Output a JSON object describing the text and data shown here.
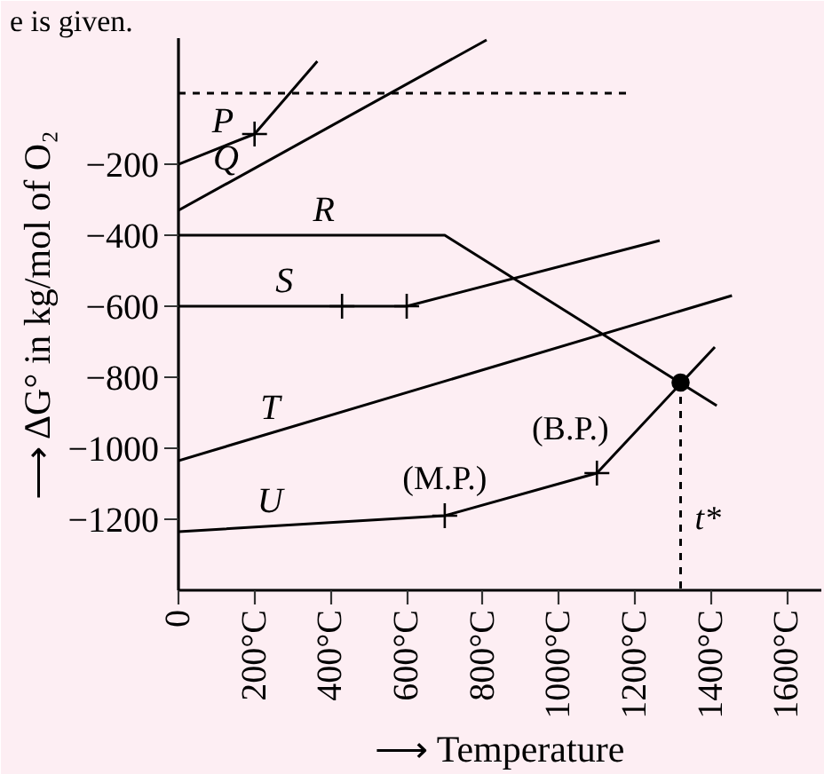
{
  "chart_data": {
    "type": "line",
    "xlabel": "⟶ Temperature",
    "ylabel": "⟶ ΔG° in kg/mol of O₂",
    "annotations": [
      "e is given.",
      {
        "text": "(M.P.)",
        "x": 700,
        "y": -1190
      },
      {
        "text": "(B.P.)",
        "x": 1100,
        "y": -1070
      },
      {
        "text": "t*",
        "x": 1320,
        "y": -1200
      }
    ],
    "xlim": [
      0,
      1690
    ],
    "ylim": [
      -1400,
      155
    ],
    "xticks": [
      0,
      {
        "value": 200,
        "label": "200°C"
      },
      {
        "value": 400,
        "label": "400°C"
      },
      {
        "value": 600,
        "label": "600°C"
      },
      {
        "value": 800,
        "label": "800°C"
      },
      {
        "value": 1000,
        "label": "1000°C"
      },
      {
        "value": 1200,
        "label": "1200°C"
      },
      {
        "value": 1400,
        "label": "1400°C"
      },
      {
        "value": 1600,
        "label": "1600°C"
      }
    ],
    "yticks": [
      -1200,
      -1000,
      -800,
      -600,
      -400,
      -200
    ],
    "grid": false,
    "legend": false,
    "series": [
      {
        "name": "P",
        "color": "#000000",
        "x": [
          0,
          200,
          365
        ],
        "values": [
          -200,
          -115,
          90
        ]
      },
      {
        "name": "Q",
        "color": "#000000",
        "x": [
          0,
          810
        ],
        "values": [
          -330,
          150
        ]
      },
      {
        "name": "R",
        "color": "#000000",
        "x": [
          0,
          700,
          1415
        ],
        "values": [
          -400,
          -400,
          -880
        ]
      },
      {
        "name": "S",
        "color": "#000000",
        "x": [
          0,
          600,
          1265
        ],
        "values": [
          -600,
          -600,
          -415
        ]
      },
      {
        "name": "T",
        "color": "#000000",
        "x": [
          0,
          1455
        ],
        "values": [
          -1035,
          -570
        ]
      },
      {
        "name": "U",
        "color": "#000000",
        "x": [
          0,
          700,
          1100,
          1410
        ],
        "values": [
          -1235,
          -1190,
          -1070,
          -715
        ]
      },
      {
        "type": "line",
        "color": "#000000",
        "line_style": "dashed",
        "x": [
          0,
          1185
        ],
        "values": [
          0,
          0
        ]
      },
      {
        "type": "line",
        "color": "#000000",
        "line_style": "dashed",
        "x": [
          1320,
          1320
        ],
        "values": [
          -815,
          -1400
        ]
      },
      {
        "type": "scatter",
        "color": "#000000",
        "marker": "cross",
        "x": [
          200,
          430,
          600,
          700,
          1100
        ],
        "values": [
          -115,
          -600,
          -600,
          -1190,
          -1070
        ]
      },
      {
        "type": "scatter",
        "color": "#000000",
        "marker": "circle",
        "x": [
          1320
        ],
        "values": [
          -815
        ]
      }
    ]
  }
}
